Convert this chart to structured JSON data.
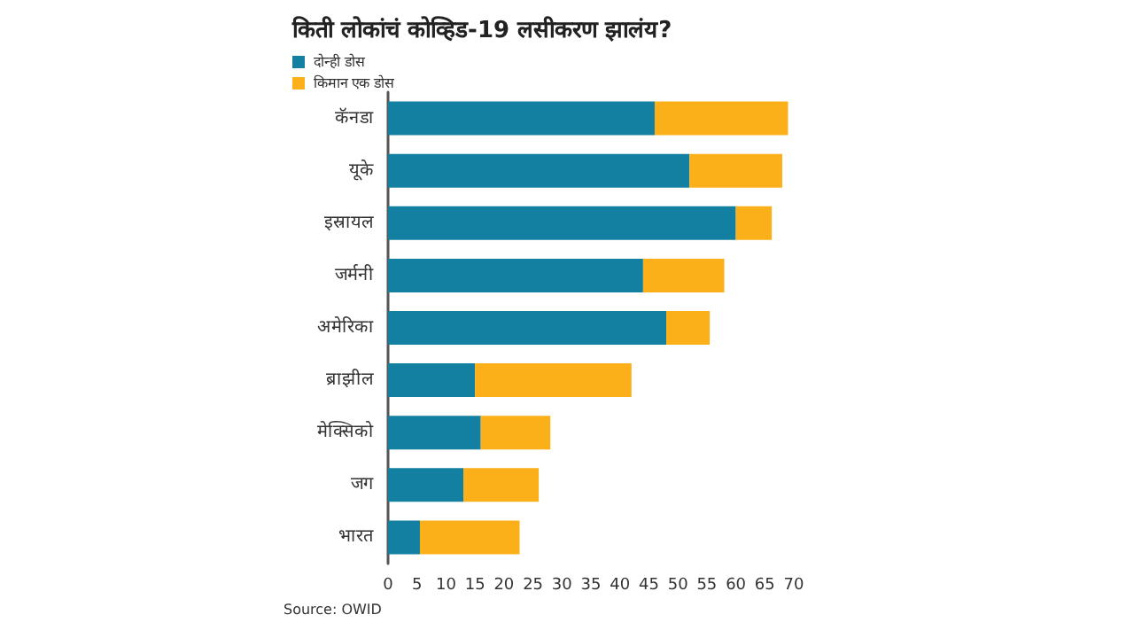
{
  "chart_data": {
    "type": "bar",
    "orientation": "horizontal",
    "stacked": true,
    "title": "किती लोकांचं कोव्हिड-19 लसीकरण झालंय?",
    "categories": [
      "कॅनडा",
      "यूके",
      "इस्रायल",
      "जर्मनी",
      "अमेरिका",
      "ब्राझील",
      "मेक्सिको",
      "जग",
      "भारत"
    ],
    "series": [
      {
        "name": "दोन्ही डोस",
        "color": "#1380a1",
        "values": [
          46,
          52,
          60,
          44,
          48,
          15,
          16,
          13,
          5.5
        ]
      },
      {
        "name": "किमान एक डोस",
        "color": "#fbaf19",
        "values": [
          23,
          16,
          6.2,
          14,
          7.5,
          27,
          12,
          13,
          17.2
        ]
      }
    ],
    "xlim": [
      0,
      70
    ],
    "xticks": [
      0,
      5,
      10,
      15,
      20,
      25,
      30,
      35,
      40,
      45,
      50,
      55,
      60,
      65,
      70
    ],
    "grid": false,
    "legend": "top left",
    "annotations": [
      "Source: OWID"
    ]
  }
}
